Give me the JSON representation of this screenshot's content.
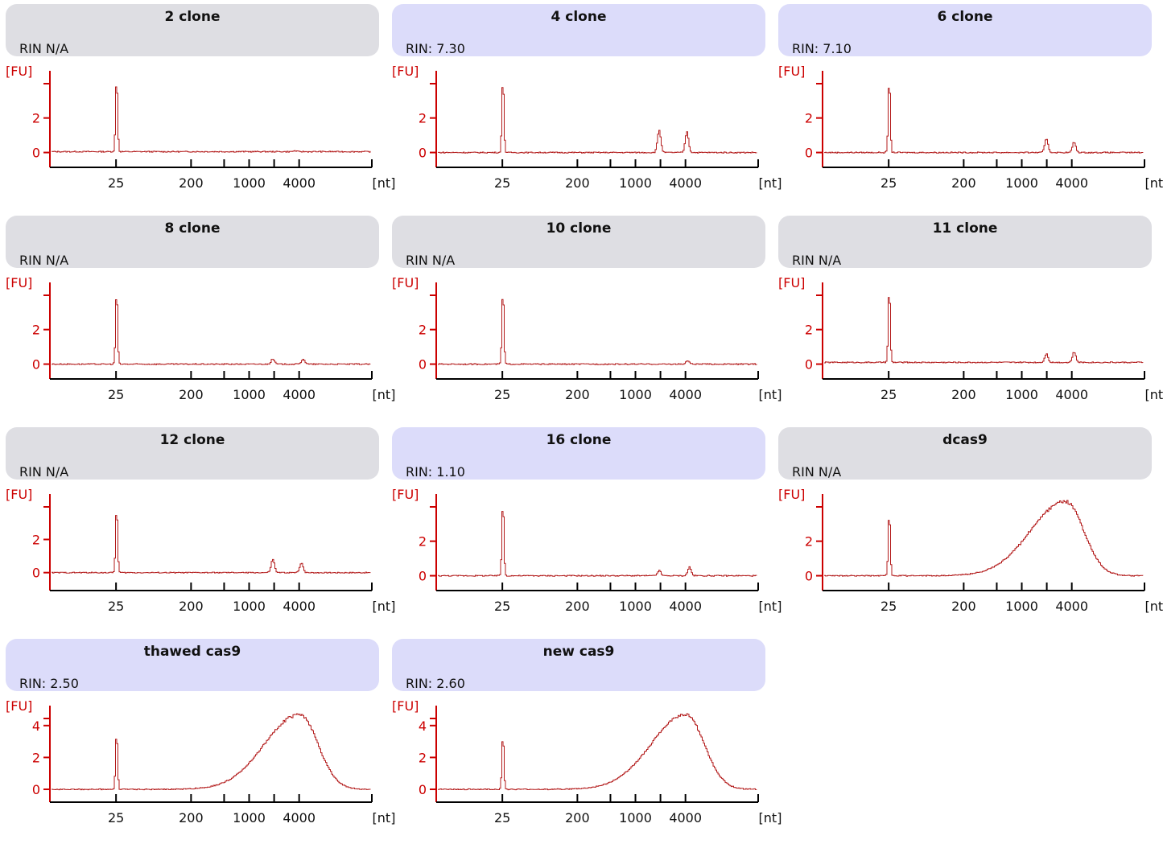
{
  "x_axis_unit": "[nt]",
  "y_axis_unit": "[FU]",
  "x_tick_labels": [
    "25",
    "200",
    "1000",
    "4000"
  ],
  "colors": {
    "axis_y": "#cc0000",
    "trace": "#b31b1b",
    "header_gray": "#dedee3",
    "header_blue": "#dcdcfa",
    "axis_x": "#000000"
  },
  "chart_data": [
    {
      "type": "line",
      "title": "2 clone",
      "rin": "RIN N/A",
      "rin_status": "na",
      "y_ticks": [
        "0",
        "2"
      ],
      "ylim": [
        -0.3,
        4.5
      ],
      "baseline": 0.05,
      "marker_peak": 4.3,
      "peaks": [
        [
          3500,
          0.05
        ]
      ],
      "broad": null,
      "ribosomal": []
    },
    {
      "type": "line",
      "title": "4 clone",
      "rin": "RIN: 7.30",
      "rin_status": "ok",
      "y_ticks": [
        "0",
        "2"
      ],
      "ylim": [
        -0.3,
        4.5
      ],
      "baseline": 0.0,
      "marker_peak": 4.3,
      "peaks": [
        [
          1900,
          1.3
        ],
        [
          4100,
          1.2
        ]
      ],
      "broad": null,
      "ribosomal": []
    },
    {
      "type": "line",
      "title": "6 clone",
      "rin": "RIN: 7.10",
      "rin_status": "ok",
      "y_ticks": [
        "0",
        "2"
      ],
      "ylim": [
        -0.3,
        4.5
      ],
      "baseline": 0.0,
      "marker_peak": 4.3,
      "peaks": [
        [
          1950,
          0.8
        ],
        [
          4200,
          0.6
        ]
      ],
      "broad": null,
      "ribosomal": []
    },
    {
      "type": "line",
      "title": "8 clone",
      "rin": "RIN N/A",
      "rin_status": "na",
      "y_ticks": [
        "0",
        "2"
      ],
      "ylim": [
        -0.3,
        4.5
      ],
      "baseline": 0.0,
      "marker_peak": 4.3,
      "peaks": [
        [
          1900,
          0.3
        ],
        [
          4400,
          0.3
        ]
      ],
      "broad": null,
      "ribosomal": []
    },
    {
      "type": "line",
      "title": "10 clone",
      "rin": "RIN N/A",
      "rin_status": "na",
      "y_ticks": [
        "0",
        "2"
      ],
      "ylim": [
        -0.3,
        4.5
      ],
      "baseline": 0.0,
      "marker_peak": 4.3,
      "peaks": [
        [
          4200,
          0.2
        ]
      ],
      "broad": null,
      "ribosomal": []
    },
    {
      "type": "line",
      "title": "11 clone",
      "rin": "RIN N/A",
      "rin_status": "na",
      "y_ticks": [
        "0",
        "2"
      ],
      "ylim": [
        -0.3,
        4.5
      ],
      "baseline": 0.1,
      "marker_peak": 4.3,
      "peaks": [
        [
          1950,
          0.5
        ],
        [
          4200,
          0.6
        ]
      ],
      "broad": null,
      "ribosomal": []
    },
    {
      "type": "line",
      "title": "12 clone",
      "rin": "RIN N/A",
      "rin_status": "na",
      "y_ticks": [
        "0",
        "2"
      ],
      "ylim": [
        -0.5,
        4.5
      ],
      "baseline": 0.0,
      "marker_peak": 4.0,
      "peaks": [
        [
          1900,
          0.8
        ],
        [
          4200,
          0.6
        ]
      ],
      "broad": null,
      "ribosomal": []
    },
    {
      "type": "line",
      "title": "16 clone",
      "rin": "RIN: 1.10",
      "rin_status": "ok",
      "y_ticks": [
        "0",
        "2"
      ],
      "ylim": [
        -0.3,
        4.5
      ],
      "baseline": 0.0,
      "marker_peak": 4.3,
      "peaks": [
        [
          1900,
          0.3
        ],
        [
          4400,
          0.5
        ]
      ],
      "broad": null,
      "ribosomal": []
    },
    {
      "type": "line",
      "title": "dcas9",
      "rin": "RIN N/A",
      "rin_status": "na",
      "y_ticks": [
        "0",
        "2"
      ],
      "ylim": [
        -0.3,
        4.5
      ],
      "baseline": 0.0,
      "marker_peak": 3.7,
      "peaks": [],
      "broad": {
        "center": 3300,
        "height": 4.3
      },
      "ribosomal": []
    },
    {
      "type": "line",
      "title": "thawed cas9",
      "rin": "RIN: 2.50",
      "rin_status": "ok",
      "y_ticks": [
        "0",
        "2",
        "4"
      ],
      "ylim": [
        -0.2,
        5.0
      ],
      "baseline": 0.0,
      "marker_peak": 3.6,
      "peaks": [],
      "broad": {
        "center": 4000,
        "height": 4.7
      },
      "ribosomal": []
    },
    {
      "type": "line",
      "title": "new cas9",
      "rin": "RIN: 2.60",
      "rin_status": "ok",
      "y_ticks": [
        "0",
        "2",
        "4"
      ],
      "ylim": [
        -0.2,
        5.0
      ],
      "baseline": 0.0,
      "marker_peak": 3.4,
      "peaks": [],
      "broad": {
        "center": 4000,
        "height": 4.7
      },
      "ribosomal": []
    }
  ]
}
